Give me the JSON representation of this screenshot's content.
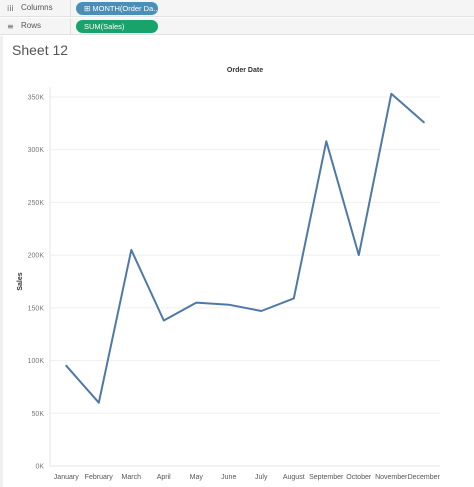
{
  "shelves": {
    "columns": {
      "icon": "columns-icon",
      "glyph": "iii",
      "label": "Columns",
      "pill": "MONTH(Order Da..",
      "pill_icon": "⊞"
    },
    "rows": {
      "icon": "rows-icon",
      "glyph": "≡",
      "label": "Rows",
      "pill": "SUM(Sales)"
    }
  },
  "sheet_title": "Sheet 12",
  "colors": {
    "line": "#4e79a7",
    "pill_dimension": "#4a8fb8",
    "pill_measure": "#17a36b"
  },
  "chart_data": {
    "type": "line",
    "title": "Order Date",
    "xlabel": "",
    "ylabel": "Sales",
    "categories": [
      "January",
      "February",
      "March",
      "April",
      "May",
      "June",
      "July",
      "August",
      "September",
      "October",
      "November",
      "December"
    ],
    "series": [
      {
        "values": [
          95000,
          60000,
          205000,
          138000,
          155000,
          153000,
          147000,
          159000,
          308000,
          200000,
          353000,
          326000
        ]
      }
    ],
    "ylim": [
      0,
      350000
    ],
    "yticks": [
      0,
      50000,
      100000,
      150000,
      200000,
      250000,
      300000,
      350000
    ],
    "ytick_labels": [
      "0K",
      "50K",
      "100K",
      "150K",
      "200K",
      "250K",
      "300K",
      "350K"
    ],
    "grid": true
  }
}
